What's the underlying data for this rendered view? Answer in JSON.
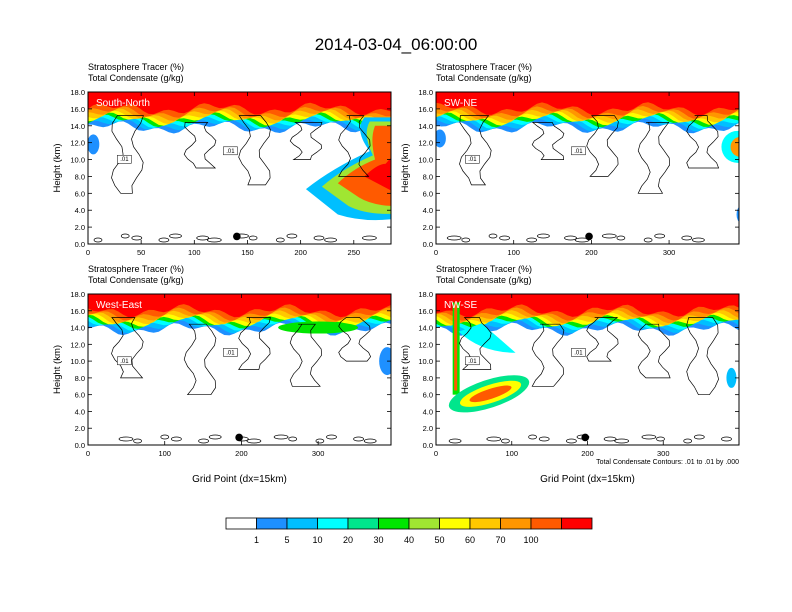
{
  "title": "2014-03-04_06:00:00",
  "panel_header_line1": "Stratosphere Tracer   (%)",
  "panel_header_line2": "Total Condensate   (g/kg)",
  "ylabel": "Height (km)",
  "xlabel": "Grid Point (dx=15km)",
  "contour_note": "Total Condensate Contours: .01 to .01 by .000",
  "contour_label": ".01",
  "colorbar": {
    "labels": [
      "1",
      "5",
      "10",
      "20",
      "30",
      "40",
      "50",
      "60",
      "70",
      "100"
    ],
    "colors": [
      "#ffffff",
      "#1e90ff",
      "#00bfff",
      "#00ffff",
      "#00e68c",
      "#00e600",
      "#a0e632",
      "#ffff00",
      "#ffc800",
      "#ff9600",
      "#ff5a00",
      "#ff0000"
    ]
  },
  "chart_data": [
    {
      "type": "heatmap",
      "label": "South-North",
      "ylim": [
        0,
        18
      ],
      "yticks": [
        "0.0",
        "2.0",
        "4.0",
        "6.0",
        "8.0",
        "10.0",
        "12.0",
        "14.0",
        "16.0",
        "18.0"
      ],
      "xlim": [
        0,
        285
      ],
      "xticks": [
        0,
        50,
        100,
        150,
        200,
        250
      ],
      "marker_x": 140,
      "xlabel_shown": false,
      "note_shown": false
    },
    {
      "type": "heatmap",
      "label": "SW-NE",
      "ylim": [
        0,
        18
      ],
      "yticks": [
        "0.0",
        "2.0",
        "4.0",
        "6.0",
        "8.0",
        "10.0",
        "12.0",
        "14.0",
        "16.0",
        "18.0"
      ],
      "xlim": [
        0,
        390
      ],
      "xticks": [
        0,
        100,
        200,
        300
      ],
      "marker_x": 197,
      "xlabel_shown": false,
      "note_shown": false
    },
    {
      "type": "heatmap",
      "label": "West-East",
      "ylim": [
        0,
        18
      ],
      "yticks": [
        "0.0",
        "2.0",
        "4.0",
        "6.0",
        "8.0",
        "10.0",
        "12.0",
        "14.0",
        "16.0",
        "18.0"
      ],
      "xlim": [
        0,
        395
      ],
      "xticks": [
        0,
        100,
        200,
        300
      ],
      "marker_x": 197,
      "xlabel_shown": true,
      "note_shown": false
    },
    {
      "type": "heatmap",
      "label": "NW-SE",
      "ylim": [
        0,
        18
      ],
      "yticks": [
        "0.0",
        "2.0",
        "4.0",
        "6.0",
        "8.0",
        "10.0",
        "12.0",
        "14.0",
        "16.0",
        "18.0"
      ],
      "xlim": [
        0,
        400
      ],
      "xticks": [
        0,
        100,
        200,
        300
      ],
      "marker_x": 197,
      "xlabel_shown": true,
      "note_shown": true
    }
  ]
}
